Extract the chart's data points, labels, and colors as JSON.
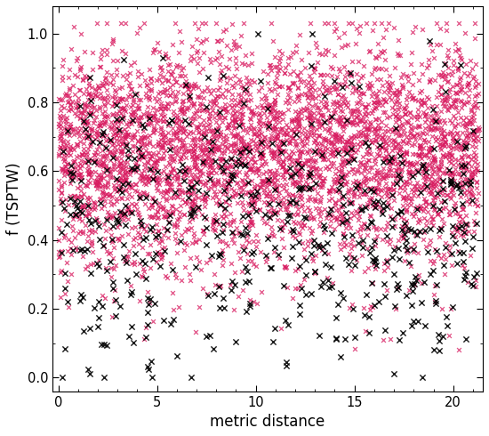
{
  "title": "",
  "xlabel": "metric distance",
  "ylabel": "f (TSPTW)",
  "xlim": [
    -0.3,
    21.5
  ],
  "ylim": [
    -0.04,
    1.08
  ],
  "xticks": [
    0,
    5,
    10,
    15,
    20
  ],
  "yticks": [
    0.0,
    0.2,
    0.4,
    0.6,
    0.8,
    1.0
  ],
  "pink_color": "#D81B60",
  "black_color": "#000000",
  "marker": "x",
  "markersize_pink": 3.5,
  "markersize_black": 4.5,
  "linewidth_pink": 0.9,
  "linewidth_black": 1.0,
  "alpha_pink": 0.75,
  "alpha_black": 0.9,
  "n_pink": 3500,
  "n_black": 600,
  "seed": 7,
  "bg_color": "#ffffff",
  "figsize": [
    5.5,
    4.9
  ],
  "dpi": 100
}
